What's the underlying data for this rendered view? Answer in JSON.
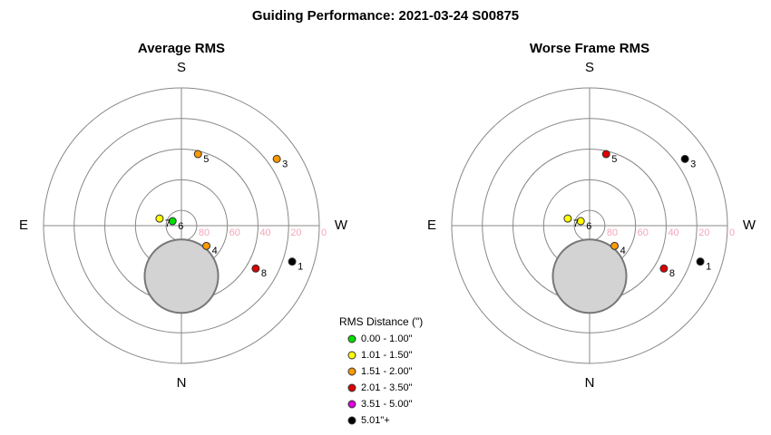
{
  "title": "Guiding Performance: 2021-03-24 S00875",
  "chart_data": [
    {
      "type": "polar",
      "title": "Average RMS",
      "directions": {
        "top": "S",
        "left": "E",
        "right": "W",
        "bottom": "N"
      },
      "rlim": [
        90,
        0
      ],
      "rticks": [
        80,
        60,
        40,
        20,
        0
      ],
      "moon": {
        "az": 0,
        "alt": 57,
        "radius_deg": 24
      },
      "points": [
        {
          "label": "1",
          "az": 288,
          "alt": 14,
          "color": "#000000"
        },
        {
          "label": "3",
          "az": 235,
          "alt": 14,
          "color": "#ff9900"
        },
        {
          "label": "4",
          "az": 309,
          "alt": 69,
          "color": "#ff9900"
        },
        {
          "label": "5",
          "az": 193,
          "alt": 42,
          "color": "#ff9900"
        },
        {
          "label": "6",
          "az": 117,
          "alt": 83.5,
          "color": "#00dd00"
        },
        {
          "label": "7",
          "az": 108,
          "alt": 75,
          "color": "#ffff00"
        },
        {
          "label": "8",
          "az": 300,
          "alt": 34,
          "color": "#dd0000"
        }
      ]
    },
    {
      "type": "polar",
      "title": "Worse Frame RMS",
      "directions": {
        "top": "S",
        "left": "E",
        "right": "W",
        "bottom": "N"
      },
      "rlim": [
        90,
        0
      ],
      "rticks": [
        80,
        60,
        40,
        20,
        0
      ],
      "moon": {
        "az": 0,
        "alt": 57,
        "radius_deg": 24
      },
      "points": [
        {
          "label": "1",
          "az": 288,
          "alt": 14,
          "color": "#000000"
        },
        {
          "label": "3",
          "az": 235,
          "alt": 14,
          "color": "#000000"
        },
        {
          "label": "4",
          "az": 309,
          "alt": 69,
          "color": "#ff9900"
        },
        {
          "label": "5",
          "az": 193,
          "alt": 42,
          "color": "#dd0000"
        },
        {
          "label": "6",
          "az": 117,
          "alt": 83.5,
          "color": "#ffff00"
        },
        {
          "label": "7",
          "az": 108,
          "alt": 75,
          "color": "#ffff00"
        },
        {
          "label": "8",
          "az": 300,
          "alt": 34,
          "color": "#dd0000"
        }
      ]
    }
  ],
  "legend": {
    "title": "RMS Distance (\")",
    "items": [
      {
        "label": "0.00 - 1.00\"",
        "color": "#00dd00"
      },
      {
        "label": "1.01 - 1.50\"",
        "color": "#ffff00"
      },
      {
        "label": "1.51 - 2.00\"",
        "color": "#ff9900"
      },
      {
        "label": "2.01 - 3.50\"",
        "color": "#dd0000"
      },
      {
        "label": "3.51 - 5.00\"",
        "color": "#dd00dd"
      },
      {
        "label": "5.01\"+",
        "color": "#000000"
      }
    ]
  }
}
